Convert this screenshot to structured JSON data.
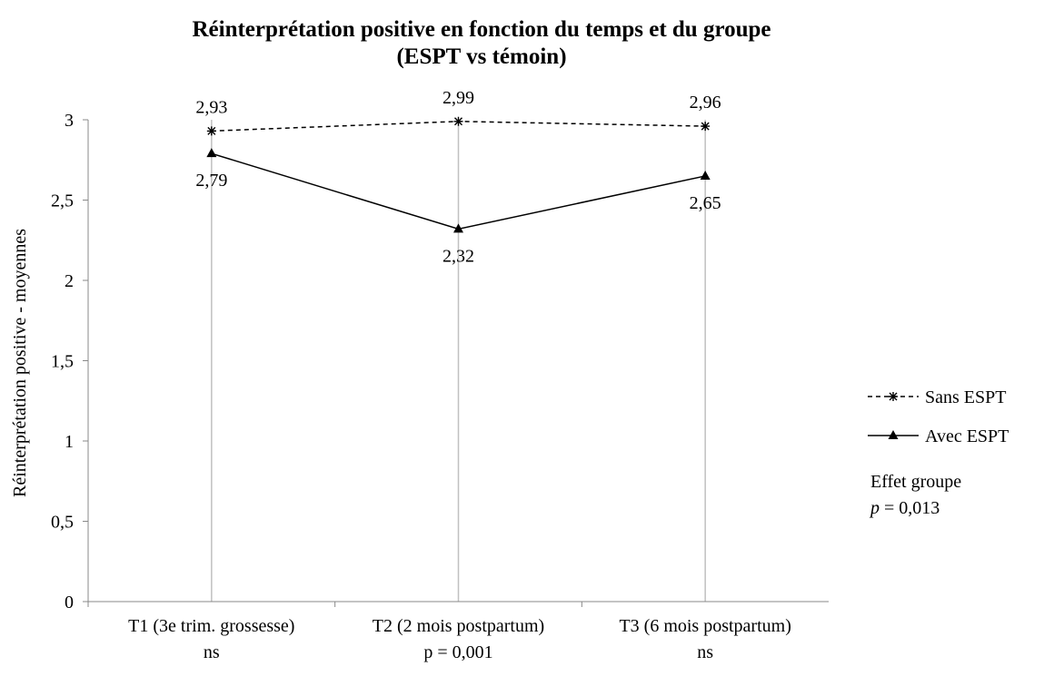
{
  "chart_data": {
    "type": "line",
    "title": [
      "Réinterprétation positive en fonction du temps et du groupe",
      "(ESPT vs témoin)"
    ],
    "y_label": "Réinterprétation positive - moyennes",
    "categories": [
      "T1 (3e trim. grossesse)",
      "T2 (2 mois postpartum)",
      "T3 (6 mois postpartum)"
    ],
    "category_notes": [
      "ns",
      "p = 0,001",
      "ns"
    ],
    "series": [
      {
        "name": "Sans ESPT",
        "color": "#000000",
        "line_style": "dashed",
        "marker": "star",
        "label_position": "above",
        "values": [
          2.93,
          2.99,
          2.96
        ],
        "value_labels": [
          "2,93",
          "2,99",
          "2,96"
        ]
      },
      {
        "name": "Avec ESPT",
        "color": "#000000",
        "line_style": "solid",
        "marker": "triangle",
        "label_position": "below",
        "values": [
          2.79,
          2.32,
          2.65
        ],
        "value_labels": [
          "2,79",
          "2,32",
          "2,65"
        ]
      }
    ],
    "ylim": [
      0,
      3
    ],
    "yticks": [
      0,
      {
        "value": 0.5,
        "label": "0,5"
      },
      1,
      {
        "value": 1.5,
        "label": "1,5"
      },
      2,
      {
        "value": 2.5,
        "label": "2,5"
      },
      3
    ],
    "grid": "categories",
    "legend": "right",
    "annotation": {
      "title": "Effet groupe",
      "p_label": "p",
      "p_value": "= 0,013"
    }
  }
}
